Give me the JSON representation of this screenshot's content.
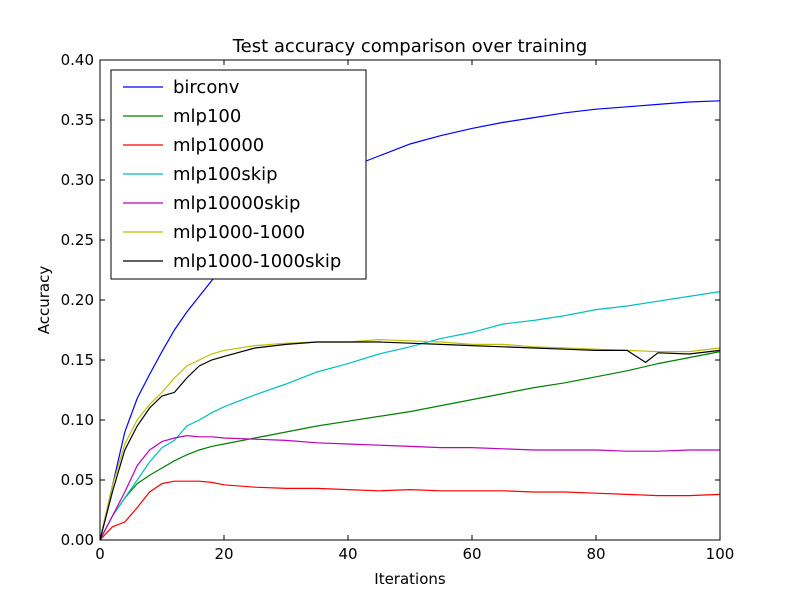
{
  "chart_data": {
    "type": "line",
    "title": "Test accuracy comparison over training",
    "xlabel": "Iterations",
    "ylabel": "Accuracy",
    "xlim": [
      0,
      100
    ],
    "ylim": [
      0.0,
      0.4
    ],
    "x_ticks": [
      0,
      20,
      40,
      60,
      80,
      100
    ],
    "y_ticks": [
      0.0,
      0.05,
      0.1,
      0.15,
      0.2,
      0.25,
      0.3,
      0.35,
      0.4
    ],
    "x_tick_labels": [
      "0",
      "20",
      "40",
      "60",
      "80",
      "100"
    ],
    "y_tick_labels": [
      "0.00",
      "0.05",
      "0.10",
      "0.15",
      "0.20",
      "0.25",
      "0.30",
      "0.35",
      "0.40"
    ],
    "grid": false,
    "legend_position": "top-left",
    "series": [
      {
        "name": "birconv",
        "color": "#0000ff",
        "points": [
          [
            0,
            0.0
          ],
          [
            2,
            0.045
          ],
          [
            4,
            0.09
          ],
          [
            6,
            0.118
          ],
          [
            8,
            0.138
          ],
          [
            10,
            0.157
          ],
          [
            12,
            0.175
          ],
          [
            14,
            0.19
          ],
          [
            16,
            0.203
          ],
          [
            18,
            0.216
          ],
          [
            20,
            0.23
          ],
          [
            25,
            0.255
          ],
          [
            30,
            0.28
          ],
          [
            35,
            0.297
          ],
          [
            40,
            0.31
          ],
          [
            45,
            0.32
          ],
          [
            50,
            0.33
          ],
          [
            55,
            0.337
          ],
          [
            60,
            0.343
          ],
          [
            65,
            0.348
          ],
          [
            70,
            0.352
          ],
          [
            75,
            0.356
          ],
          [
            80,
            0.359
          ],
          [
            85,
            0.361
          ],
          [
            90,
            0.363
          ],
          [
            95,
            0.365
          ],
          [
            100,
            0.366
          ]
        ]
      },
      {
        "name": "mlp100",
        "color": "#008000",
        "points": [
          [
            0,
            0.0
          ],
          [
            2,
            0.02
          ],
          [
            4,
            0.035
          ],
          [
            6,
            0.047
          ],
          [
            8,
            0.054
          ],
          [
            10,
            0.06
          ],
          [
            12,
            0.066
          ],
          [
            14,
            0.071
          ],
          [
            16,
            0.075
          ],
          [
            18,
            0.078
          ],
          [
            20,
            0.08
          ],
          [
            25,
            0.085
          ],
          [
            30,
            0.09
          ],
          [
            35,
            0.095
          ],
          [
            40,
            0.099
          ],
          [
            45,
            0.103
          ],
          [
            50,
            0.107
          ],
          [
            55,
            0.112
          ],
          [
            60,
            0.117
          ],
          [
            65,
            0.122
          ],
          [
            70,
            0.127
          ],
          [
            75,
            0.131
          ],
          [
            80,
            0.136
          ],
          [
            85,
            0.141
          ],
          [
            90,
            0.147
          ],
          [
            95,
            0.152
          ],
          [
            100,
            0.157
          ]
        ]
      },
      {
        "name": "mlp10000",
        "color": "#ff0000",
        "points": [
          [
            0,
            0.0
          ],
          [
            2,
            0.011
          ],
          [
            4,
            0.015
          ],
          [
            6,
            0.027
          ],
          [
            8,
            0.04
          ],
          [
            10,
            0.047
          ],
          [
            12,
            0.049
          ],
          [
            14,
            0.049
          ],
          [
            16,
            0.049
          ],
          [
            18,
            0.048
          ],
          [
            20,
            0.046
          ],
          [
            25,
            0.044
          ],
          [
            30,
            0.043
          ],
          [
            35,
            0.043
          ],
          [
            40,
            0.042
          ],
          [
            45,
            0.041
          ],
          [
            50,
            0.042
          ],
          [
            55,
            0.041
          ],
          [
            60,
            0.041
          ],
          [
            65,
            0.041
          ],
          [
            70,
            0.04
          ],
          [
            75,
            0.04
          ],
          [
            80,
            0.039
          ],
          [
            85,
            0.038
          ],
          [
            90,
            0.037
          ],
          [
            95,
            0.037
          ],
          [
            100,
            0.038
          ]
        ]
      },
      {
        "name": "mlp100skip",
        "color": "#00bfbf",
        "points": [
          [
            0,
            0.0
          ],
          [
            2,
            0.02
          ],
          [
            4,
            0.035
          ],
          [
            6,
            0.05
          ],
          [
            8,
            0.065
          ],
          [
            10,
            0.077
          ],
          [
            12,
            0.083
          ],
          [
            14,
            0.095
          ],
          [
            16,
            0.1
          ],
          [
            18,
            0.106
          ],
          [
            20,
            0.111
          ],
          [
            25,
            0.121
          ],
          [
            30,
            0.13
          ],
          [
            35,
            0.14
          ],
          [
            40,
            0.147
          ],
          [
            45,
            0.155
          ],
          [
            50,
            0.161
          ],
          [
            55,
            0.168
          ],
          [
            60,
            0.173
          ],
          [
            65,
            0.18
          ],
          [
            70,
            0.183
          ],
          [
            75,
            0.187
          ],
          [
            80,
            0.192
          ],
          [
            85,
            0.195
          ],
          [
            90,
            0.199
          ],
          [
            95,
            0.203
          ],
          [
            100,
            0.207
          ]
        ]
      },
      {
        "name": "mlp10000skip",
        "color": "#bf00bf",
        "points": [
          [
            0,
            0.0
          ],
          [
            2,
            0.02
          ],
          [
            4,
            0.04
          ],
          [
            6,
            0.062
          ],
          [
            8,
            0.075
          ],
          [
            10,
            0.082
          ],
          [
            12,
            0.085
          ],
          [
            14,
            0.087
          ],
          [
            16,
            0.086
          ],
          [
            18,
            0.086
          ],
          [
            20,
            0.085
          ],
          [
            25,
            0.084
          ],
          [
            30,
            0.083
          ],
          [
            35,
            0.081
          ],
          [
            40,
            0.08
          ],
          [
            45,
            0.079
          ],
          [
            50,
            0.078
          ],
          [
            55,
            0.077
          ],
          [
            60,
            0.077
          ],
          [
            65,
            0.076
          ],
          [
            70,
            0.075
          ],
          [
            75,
            0.075
          ],
          [
            80,
            0.075
          ],
          [
            85,
            0.074
          ],
          [
            90,
            0.074
          ],
          [
            95,
            0.075
          ],
          [
            100,
            0.075
          ]
        ]
      },
      {
        "name": "mlp1000-1000",
        "color": "#bfbf00",
        "points": [
          [
            0,
            0.0
          ],
          [
            2,
            0.045
          ],
          [
            4,
            0.08
          ],
          [
            6,
            0.1
          ],
          [
            8,
            0.113
          ],
          [
            10,
            0.123
          ],
          [
            12,
            0.135
          ],
          [
            14,
            0.145
          ],
          [
            16,
            0.15
          ],
          [
            18,
            0.155
          ],
          [
            20,
            0.158
          ],
          [
            25,
            0.162
          ],
          [
            30,
            0.164
          ],
          [
            35,
            0.165
          ],
          [
            40,
            0.165
          ],
          [
            45,
            0.167
          ],
          [
            50,
            0.166
          ],
          [
            55,
            0.165
          ],
          [
            60,
            0.163
          ],
          [
            65,
            0.163
          ],
          [
            70,
            0.161
          ],
          [
            75,
            0.16
          ],
          [
            80,
            0.159
          ],
          [
            85,
            0.158
          ],
          [
            90,
            0.157
          ],
          [
            95,
            0.157
          ],
          [
            100,
            0.16
          ]
        ]
      },
      {
        "name": "mlp1000-1000skip",
        "color": "#000000",
        "points": [
          [
            0,
            0.0
          ],
          [
            2,
            0.04
          ],
          [
            4,
            0.075
          ],
          [
            6,
            0.095
          ],
          [
            8,
            0.11
          ],
          [
            10,
            0.12
          ],
          [
            12,
            0.123
          ],
          [
            14,
            0.135
          ],
          [
            16,
            0.145
          ],
          [
            18,
            0.15
          ],
          [
            20,
            0.153
          ],
          [
            25,
            0.16
          ],
          [
            30,
            0.163
          ],
          [
            35,
            0.165
          ],
          [
            40,
            0.165
          ],
          [
            45,
            0.165
          ],
          [
            50,
            0.164
          ],
          [
            55,
            0.163
          ],
          [
            60,
            0.162
          ],
          [
            65,
            0.161
          ],
          [
            70,
            0.16
          ],
          [
            75,
            0.159
          ],
          [
            80,
            0.158
          ],
          [
            85,
            0.158
          ],
          [
            88,
            0.148
          ],
          [
            90,
            0.156
          ],
          [
            95,
            0.155
          ],
          [
            100,
            0.158
          ]
        ]
      }
    ]
  }
}
